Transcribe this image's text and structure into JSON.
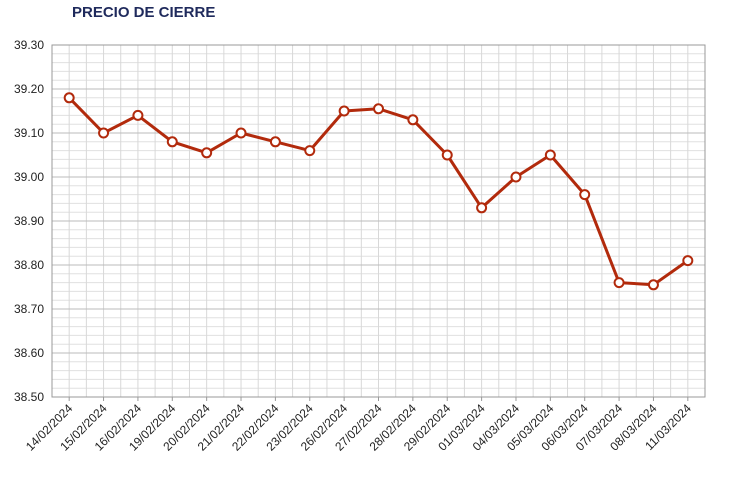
{
  "chart_data": {
    "type": "line",
    "title": "PRECIO DE CIERRE",
    "categories": [
      "14/02/2024",
      "15/02/2024",
      "16/02/2024",
      "19/02/2024",
      "20/02/2024",
      "21/02/2024",
      "22/02/2024",
      "23/02/2024",
      "26/02/2024",
      "27/02/2024",
      "28/02/2024",
      "29/02/2024",
      "01/03/2024",
      "04/03/2024",
      "05/03/2024",
      "06/03/2024",
      "07/03/2024",
      "08/03/2024",
      "11/03/2024"
    ],
    "series": [
      {
        "name": "Precio de cierre",
        "color": "#b22a0c",
        "values": [
          39.18,
          39.1,
          39.14,
          39.08,
          39.055,
          39.1,
          39.08,
          39.06,
          39.15,
          39.155,
          39.13,
          39.05,
          38.93,
          39.0,
          39.05,
          38.96,
          38.76,
          38.755,
          38.81
        ]
      }
    ],
    "ylim": [
      38.5,
      39.3
    ],
    "yticks": [
      {
        "value": 38.5,
        "label": "38.50"
      },
      {
        "value": 38.6,
        "label": "38.60"
      },
      {
        "value": 38.7,
        "label": "38.70"
      },
      {
        "value": 38.8,
        "label": "38.80"
      },
      {
        "value": 38.9,
        "label": "38.90"
      },
      {
        "value": 39,
        "label": "39.00"
      },
      {
        "value": 39.1,
        "label": "39.10"
      },
      {
        "value": 39.2,
        "label": "39.20"
      },
      {
        "value": 39.3,
        "label": "39.30"
      }
    ],
    "grid": true
  }
}
